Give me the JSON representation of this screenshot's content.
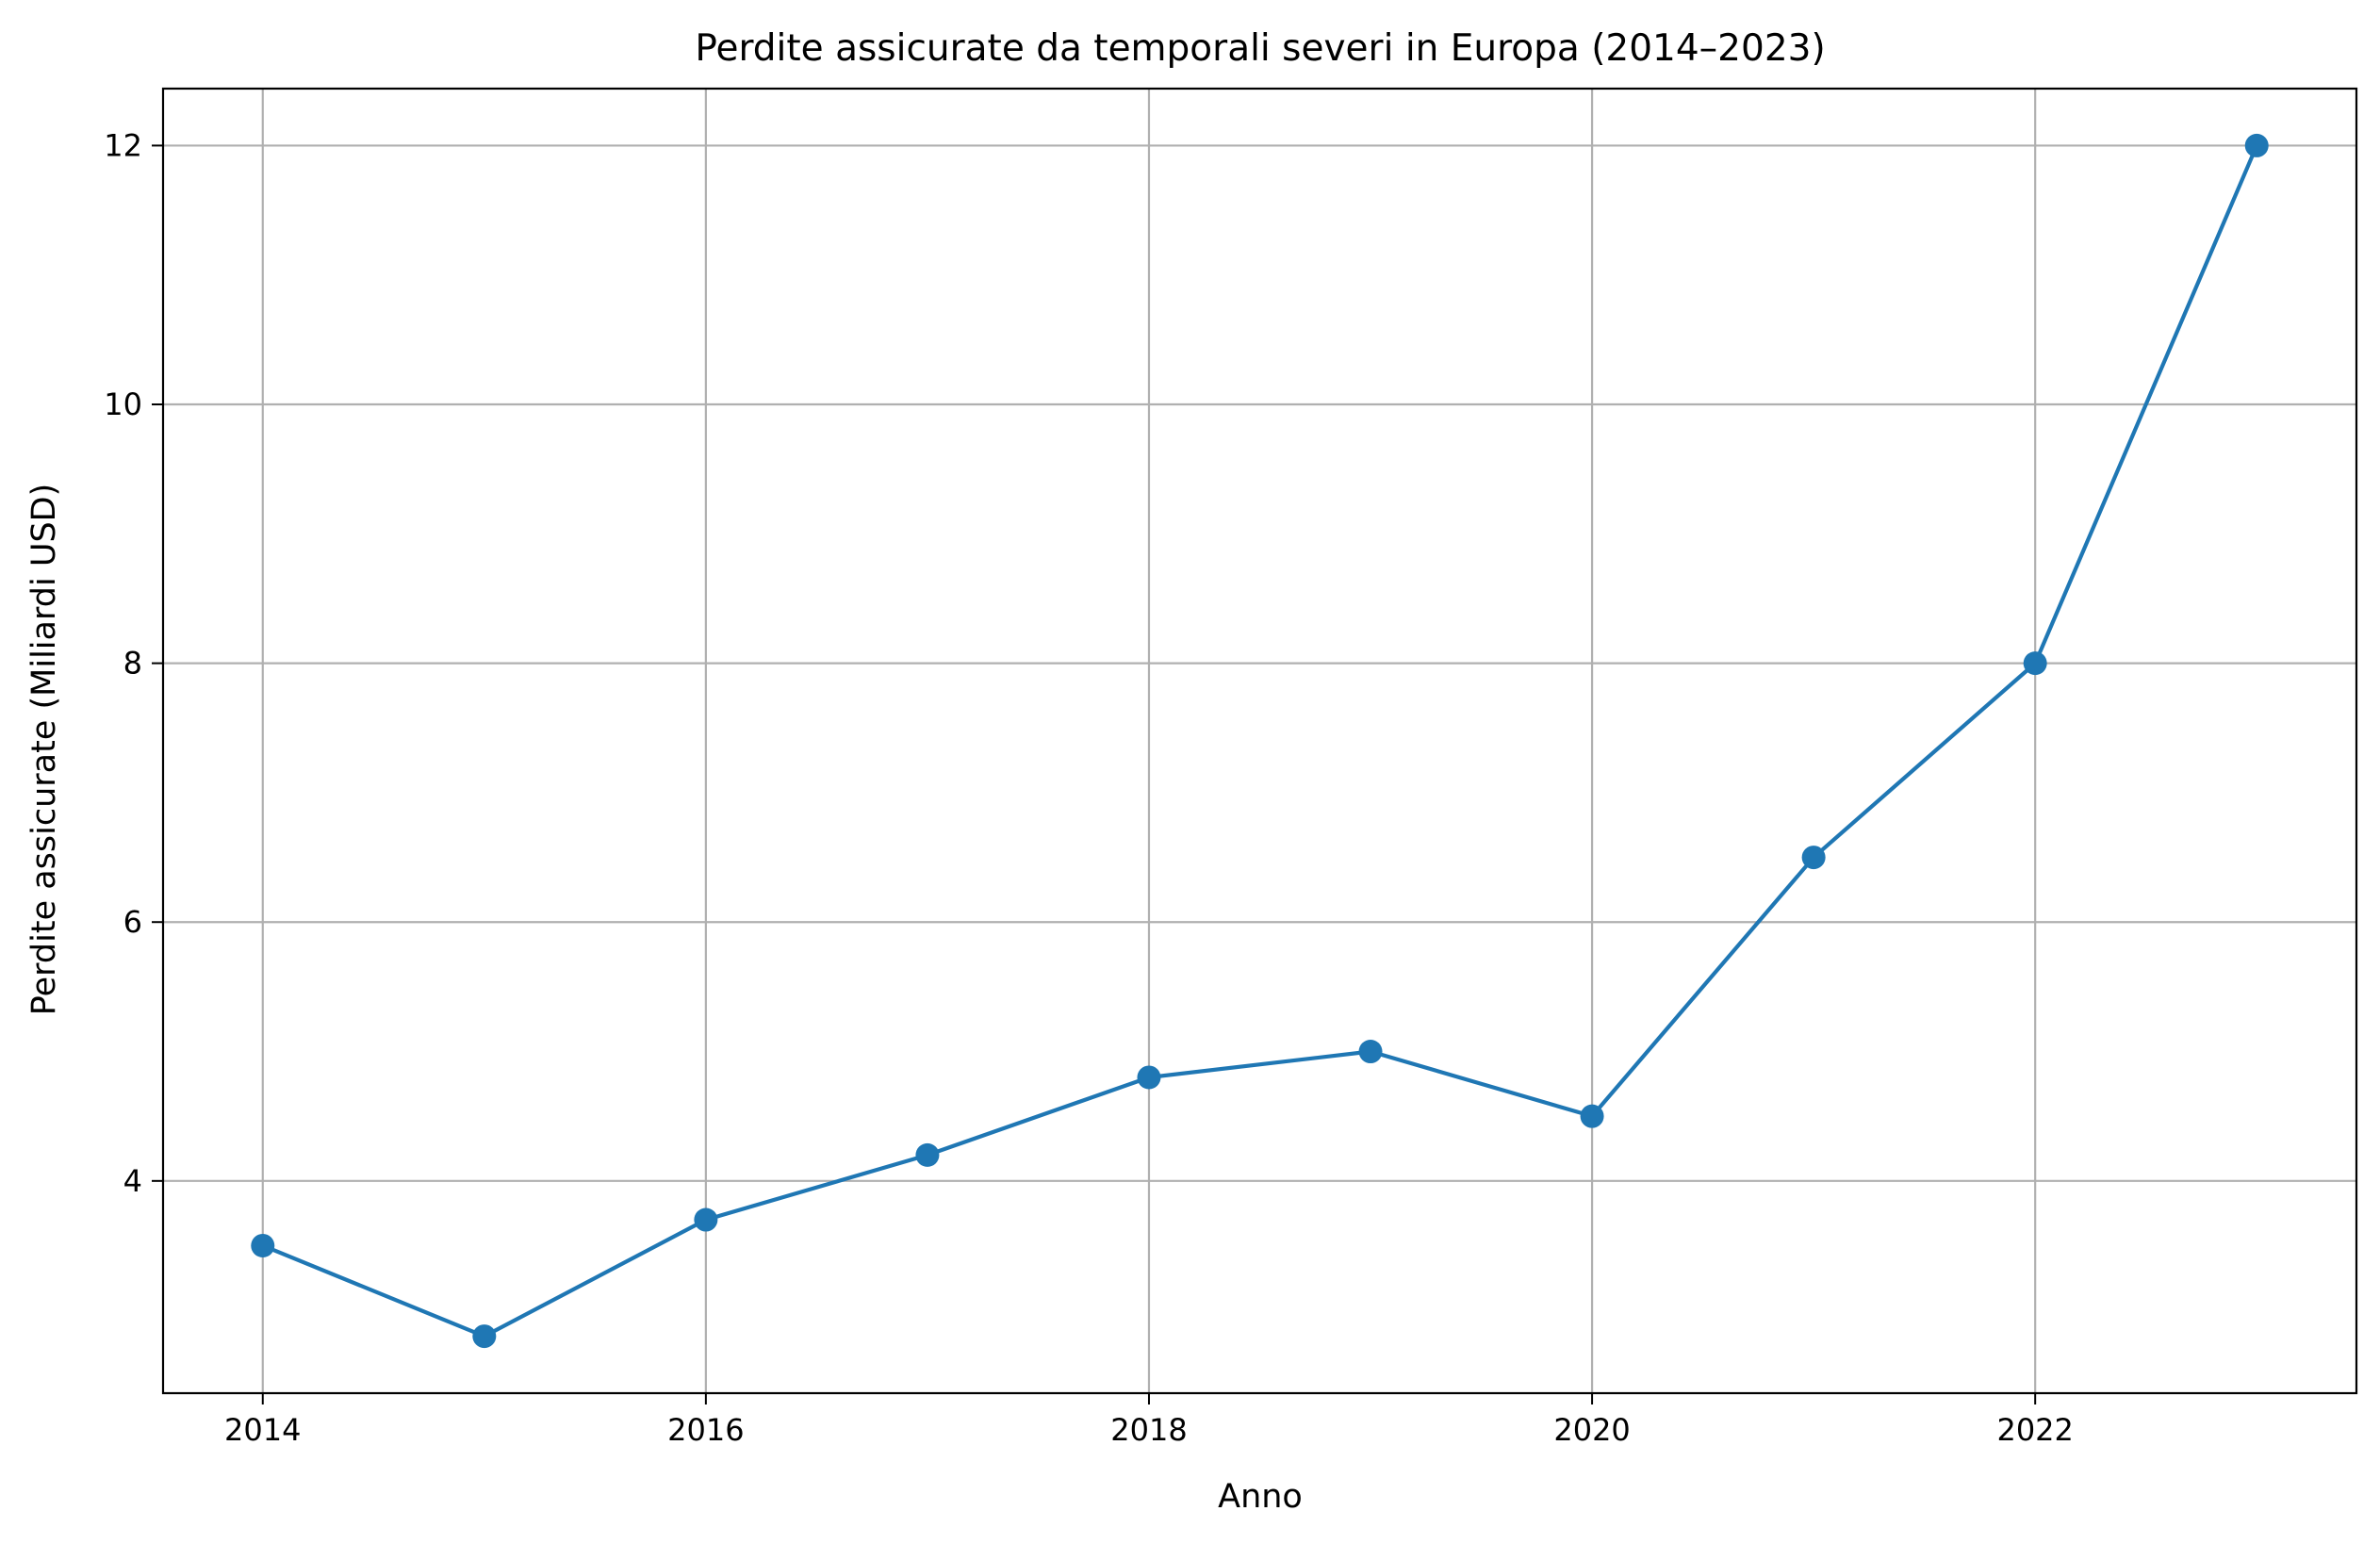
{
  "chart_data": {
    "type": "line",
    "title": "Perdite assicurate da temporali severi in Europa (2014–2023)",
    "xlabel": "Anno",
    "ylabel": "Perdite assicurate (Miliardi USD)",
    "x": [
      2014,
      2015,
      2016,
      2017,
      2018,
      2019,
      2020,
      2021,
      2022,
      2023
    ],
    "series": [
      {
        "values": [
          3.5,
          2.8,
          3.7,
          4.2,
          4.8,
          5.0,
          4.5,
          6.5,
          8.0,
          12.0
        ],
        "color": "#1f77b4"
      }
    ],
    "xlim": [
      2013.55,
      2023.45
    ],
    "ylim": [
      2.36,
      12.44
    ],
    "xticks": [
      2014,
      2016,
      2018,
      2020,
      2022
    ],
    "xtick_labels": [
      "2014",
      "2016",
      "2018",
      "2020",
      "2022"
    ],
    "yticks": [
      4,
      6,
      8,
      10,
      12
    ],
    "ytick_labels": [
      "4",
      "6",
      "8",
      "10",
      "12"
    ],
    "grid": true,
    "legend": "none"
  }
}
